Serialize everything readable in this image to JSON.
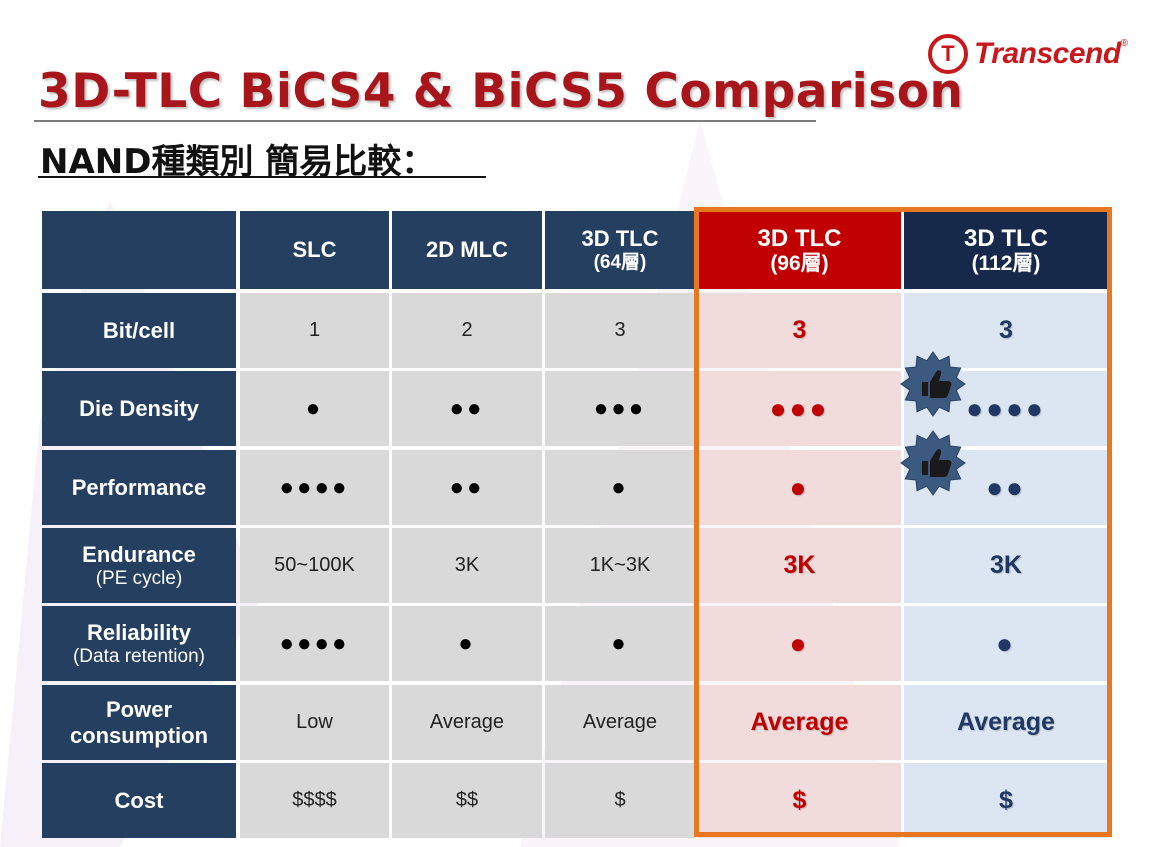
{
  "brand": {
    "logo_mark": "T",
    "logo_text": "Transcend",
    "logo_reg": "®"
  },
  "title": "3D-TLC BiCS4 & BiCS5 Comparison",
  "subtitle": "NAND種類別 簡易比較：",
  "table": {
    "headers": [
      {
        "label": "",
        "sub": ""
      },
      {
        "label": "SLC",
        "sub": ""
      },
      {
        "label": "2D MLC",
        "sub": ""
      },
      {
        "label": "3D TLC",
        "sub": "(64層)"
      },
      {
        "label": "3D TLC",
        "sub": "(96層)"
      },
      {
        "label": "3D TLC",
        "sub": "(112層)"
      }
    ],
    "rows": [
      {
        "label": "Bit/cell",
        "sub": "",
        "cells": [
          "1",
          "2",
          "3",
          "3",
          "3"
        ]
      },
      {
        "label": "Die Density",
        "sub": "",
        "cells": [
          "●",
          "●●",
          "●●●",
          "●●●",
          "●●●●"
        ]
      },
      {
        "label": "Performance",
        "sub": "",
        "cells": [
          "●●●●",
          "●●",
          "●",
          "●",
          "●●"
        ]
      },
      {
        "label": "Endurance",
        "sub": "(PE cycle)",
        "cells": [
          "50~100K",
          "3K",
          "1K~3K",
          "3K",
          "3K"
        ]
      },
      {
        "label": "Reliability",
        "sub": "(Data retention)",
        "cells": [
          "●●●●",
          "●",
          "●",
          "●",
          "●"
        ]
      },
      {
        "label": "Power consumption",
        "sub": "",
        "cells": [
          "Low",
          "Average",
          "Average",
          "Average",
          "Average"
        ]
      },
      {
        "label": "Cost",
        "sub": "",
        "cells": [
          "$$$$",
          "$$",
          "$",
          "$",
          "$"
        ]
      }
    ]
  },
  "badges": [
    {
      "row": "Die Density",
      "icon": "thumbs-up-icon"
    },
    {
      "row": "Performance",
      "icon": "thumbs-up-icon"
    }
  ],
  "colors": {
    "title": "#a8151b",
    "header_dark": "#243f60",
    "highlight_96": "#c00000",
    "highlight_112": "#1f3864",
    "frame": "#e87722"
  }
}
